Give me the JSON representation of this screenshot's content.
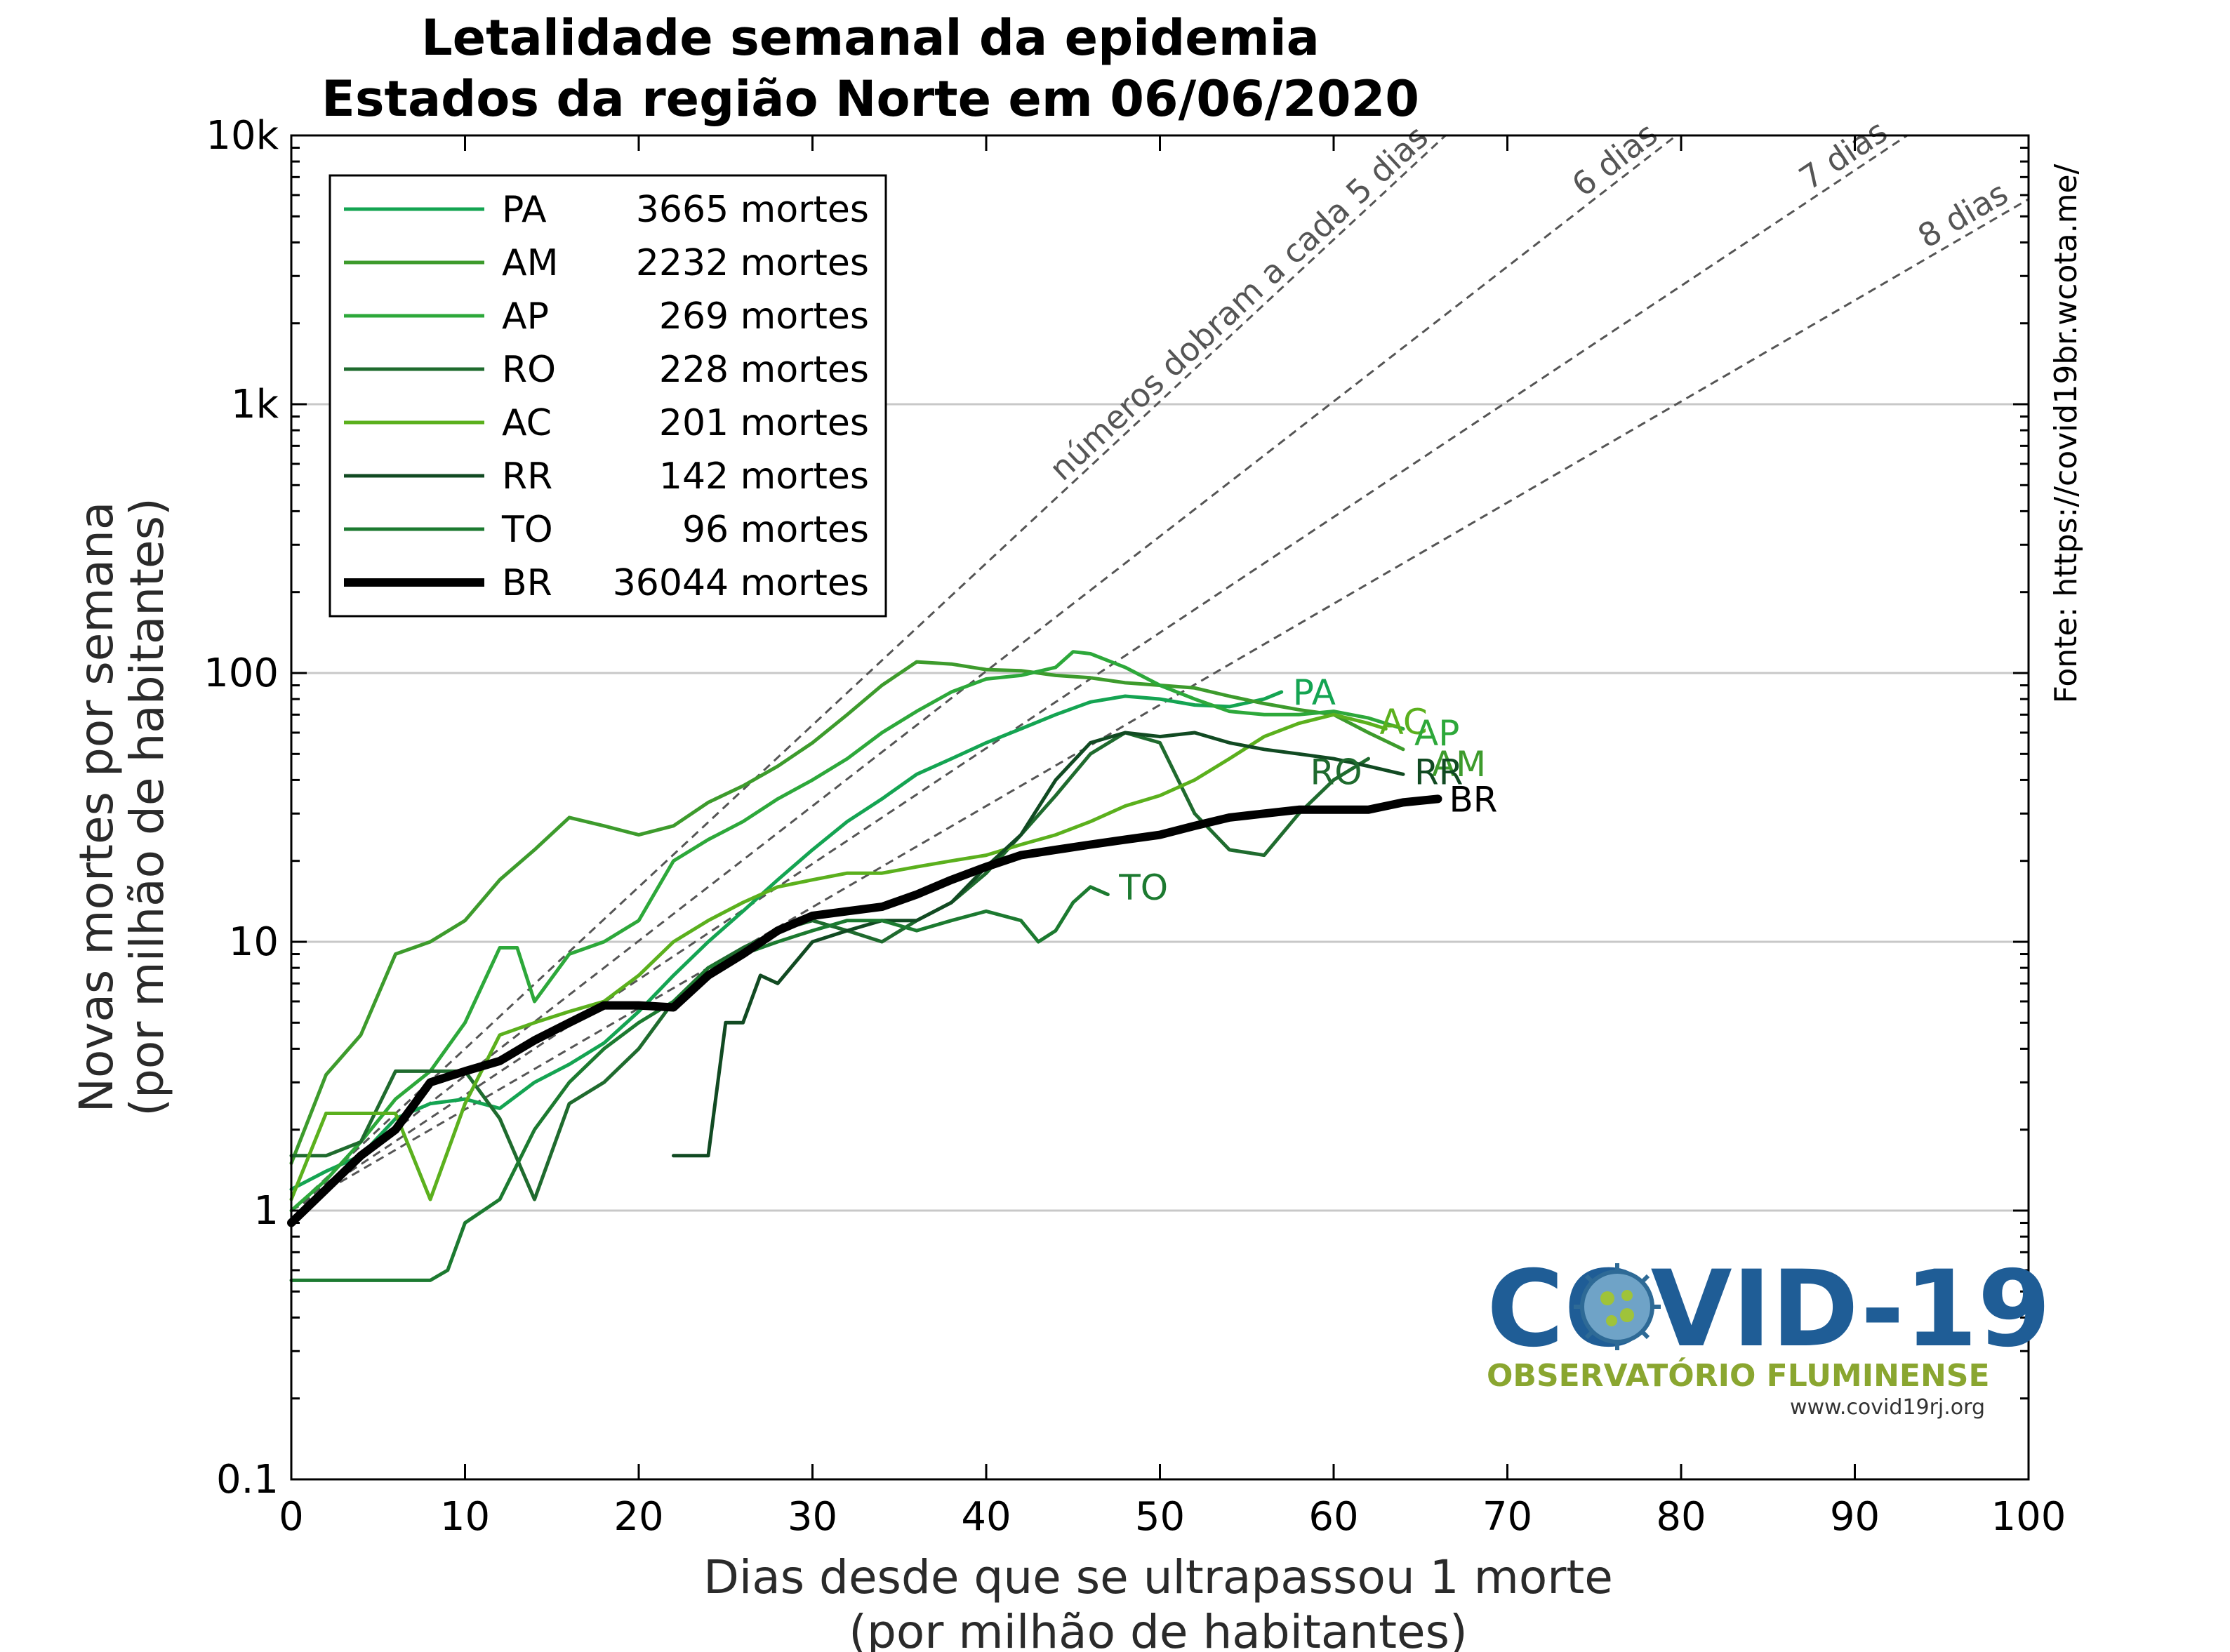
{
  "chart_data": {
    "type": "line",
    "title": "Letalidade semanal da epidemia",
    "subtitle": "Estados da região Norte em 06/06/2020",
    "xlabel_line1": "Dias desde que se ultrapassou 1 morte",
    "xlabel_line2": "(por milhão de habitantes)",
    "ylabel_line1": "Novas mortes por semana",
    "ylabel_line2": "(por milhão de habitantes)",
    "xlim": [
      0,
      100
    ],
    "ylim": [
      0.1,
      10000
    ],
    "yscale": "log",
    "xticks": [
      0,
      10,
      20,
      30,
      40,
      50,
      60,
      70,
      80,
      90,
      100
    ],
    "yticks": [
      {
        "value": 0.1,
        "label": "0.1"
      },
      {
        "value": 1,
        "label": "1"
      },
      {
        "value": 10,
        "label": "10"
      },
      {
        "value": 100,
        "label": "100"
      },
      {
        "value": 1000,
        "label": "1k"
      },
      {
        "value": 10000,
        "label": "10k"
      }
    ],
    "grid": "horizontal major",
    "legend_position": "top-left",
    "source_text": "Fonte: https://covid19br.wcota.me/",
    "reference_lines": [
      {
        "label": "números dobram a cada 5 dias",
        "doubling_days": 5
      },
      {
        "label": "6 dias",
        "doubling_days": 6
      },
      {
        "label": "7 dias",
        "doubling_days": 7
      },
      {
        "label": "8 dias",
        "doubling_days": 8
      }
    ],
    "series": [
      {
        "name": "PA",
        "deaths": "3665 mortes",
        "color": "#14a452",
        "width": 5,
        "points": [
          [
            0,
            1.2
          ],
          [
            2,
            1.4
          ],
          [
            4,
            1.6
          ],
          [
            6,
            2.2
          ],
          [
            8,
            2.5
          ],
          [
            10,
            2.6
          ],
          [
            12,
            2.4
          ],
          [
            14,
            3.0
          ],
          [
            16,
            3.5
          ],
          [
            18,
            4.2
          ],
          [
            20,
            5.5
          ],
          [
            22,
            7.5
          ],
          [
            24,
            10
          ],
          [
            26,
            13
          ],
          [
            28,
            17
          ],
          [
            30,
            22
          ],
          [
            32,
            28
          ],
          [
            34,
            34
          ],
          [
            36,
            42
          ],
          [
            38,
            48
          ],
          [
            40,
            55
          ],
          [
            42,
            62
          ],
          [
            44,
            70
          ],
          [
            46,
            78
          ],
          [
            48,
            82
          ],
          [
            50,
            80
          ],
          [
            52,
            76
          ],
          [
            54,
            75
          ],
          [
            56,
            80
          ],
          [
            57,
            85
          ]
        ]
      },
      {
        "name": "AM",
        "deaths": "2232 mortes",
        "color": "#3d9b2c",
        "width": 5,
        "points": [
          [
            0,
            1.5
          ],
          [
            2,
            3.2
          ],
          [
            4,
            4.5
          ],
          [
            6,
            9
          ],
          [
            8,
            10
          ],
          [
            10,
            12
          ],
          [
            12,
            17
          ],
          [
            14,
            22
          ],
          [
            16,
            29
          ],
          [
            18,
            27
          ],
          [
            20,
            25
          ],
          [
            22,
            27
          ],
          [
            24,
            33
          ],
          [
            26,
            38
          ],
          [
            28,
            45
          ],
          [
            30,
            55
          ],
          [
            32,
            70
          ],
          [
            34,
            90
          ],
          [
            36,
            110
          ],
          [
            38,
            108
          ],
          [
            40,
            103
          ],
          [
            42,
            102
          ],
          [
            44,
            98
          ],
          [
            46,
            96
          ],
          [
            48,
            92
          ],
          [
            50,
            90
          ],
          [
            52,
            88
          ],
          [
            54,
            82
          ],
          [
            56,
            77
          ],
          [
            58,
            73
          ],
          [
            60,
            70
          ],
          [
            62,
            60
          ],
          [
            64,
            52
          ]
        ]
      },
      {
        "name": "AP",
        "deaths": "269 mortes",
        "color": "#2da83a",
        "width": 5,
        "points": [
          [
            0,
            1.0
          ],
          [
            2,
            1.3
          ],
          [
            4,
            1.8
          ],
          [
            6,
            2.6
          ],
          [
            8,
            3.3
          ],
          [
            10,
            5
          ],
          [
            12,
            9.5
          ],
          [
            13,
            9.5
          ],
          [
            14,
            6
          ],
          [
            16,
            9
          ],
          [
            18,
            10
          ],
          [
            20,
            12
          ],
          [
            22,
            20
          ],
          [
            24,
            24
          ],
          [
            26,
            28
          ],
          [
            28,
            34
          ],
          [
            30,
            40
          ],
          [
            32,
            48
          ],
          [
            34,
            60
          ],
          [
            36,
            72
          ],
          [
            38,
            85
          ],
          [
            40,
            95
          ],
          [
            42,
            98
          ],
          [
            44,
            105
          ],
          [
            45,
            120
          ],
          [
            46,
            118
          ],
          [
            48,
            105
          ],
          [
            50,
            90
          ],
          [
            52,
            80
          ],
          [
            54,
            72
          ],
          [
            56,
            70
          ],
          [
            58,
            70
          ],
          [
            60,
            72
          ],
          [
            62,
            68
          ],
          [
            64,
            62
          ]
        ]
      },
      {
        "name": "RO",
        "deaths": "228 mortes",
        "color": "#1f6b2e",
        "width": 5,
        "points": [
          [
            0,
            1.6
          ],
          [
            2,
            1.6
          ],
          [
            4,
            1.8
          ],
          [
            6,
            3.3
          ],
          [
            8,
            3.3
          ],
          [
            10,
            3.3
          ],
          [
            12,
            2.2
          ],
          [
            14,
            1.1
          ],
          [
            16,
            2.5
          ],
          [
            18,
            3.0
          ],
          [
            20,
            4.0
          ],
          [
            22,
            6
          ],
          [
            24,
            8
          ],
          [
            26,
            9.5
          ],
          [
            28,
            11
          ],
          [
            30,
            12
          ],
          [
            32,
            11
          ],
          [
            34,
            10
          ],
          [
            36,
            12
          ],
          [
            38,
            14
          ],
          [
            40,
            18
          ],
          [
            42,
            25
          ],
          [
            44,
            35
          ],
          [
            46,
            50
          ],
          [
            48,
            60
          ],
          [
            50,
            55
          ],
          [
            52,
            30
          ],
          [
            54,
            22
          ],
          [
            56,
            21
          ],
          [
            58,
            30
          ],
          [
            60,
            40
          ],
          [
            62,
            48
          ]
        ]
      },
      {
        "name": "AC",
        "deaths": "201 mortes",
        "color": "#5bb01d",
        "width": 5,
        "points": [
          [
            0,
            1.1
          ],
          [
            2,
            2.3
          ],
          [
            4,
            2.3
          ],
          [
            6,
            2.3
          ],
          [
            8,
            1.1
          ],
          [
            10,
            2.5
          ],
          [
            12,
            4.5
          ],
          [
            14,
            5.0
          ],
          [
            16,
            5.5
          ],
          [
            18,
            6.0
          ],
          [
            20,
            7.5
          ],
          [
            22,
            10
          ],
          [
            24,
            12
          ],
          [
            26,
            14
          ],
          [
            28,
            16
          ],
          [
            30,
            17
          ],
          [
            32,
            18
          ],
          [
            34,
            18
          ],
          [
            36,
            19
          ],
          [
            38,
            20
          ],
          [
            40,
            21
          ],
          [
            42,
            23
          ],
          [
            44,
            25
          ],
          [
            46,
            28
          ],
          [
            48,
            32
          ],
          [
            50,
            35
          ],
          [
            52,
            40
          ],
          [
            54,
            48
          ],
          [
            56,
            58
          ],
          [
            58,
            65
          ],
          [
            60,
            70
          ],
          [
            62,
            65
          ],
          [
            63,
            62
          ]
        ]
      },
      {
        "name": "RR",
        "deaths": "142 mortes",
        "color": "#114a22",
        "width": 5,
        "points": [
          [
            22,
            1.6
          ],
          [
            24,
            1.6
          ],
          [
            25,
            5
          ],
          [
            26,
            5
          ],
          [
            27,
            7.5
          ],
          [
            28,
            7
          ],
          [
            30,
            10
          ],
          [
            32,
            11
          ],
          [
            34,
            12
          ],
          [
            36,
            12
          ],
          [
            38,
            14
          ],
          [
            40,
            19
          ],
          [
            42,
            25
          ],
          [
            44,
            40
          ],
          [
            46,
            55
          ],
          [
            48,
            60
          ],
          [
            50,
            58
          ],
          [
            52,
            60
          ],
          [
            54,
            55
          ],
          [
            56,
            52
          ],
          [
            58,
            50
          ],
          [
            60,
            48
          ],
          [
            62,
            45
          ],
          [
            64,
            42
          ]
        ]
      },
      {
        "name": "TO",
        "deaths": "96 mortes",
        "color": "#1c7a30",
        "width": 5,
        "points": [
          [
            0,
            0.55
          ],
          [
            2,
            0.55
          ],
          [
            4,
            0.55
          ],
          [
            6,
            0.55
          ],
          [
            8,
            0.55
          ],
          [
            9,
            0.6
          ],
          [
            10,
            0.9
          ],
          [
            12,
            1.1
          ],
          [
            14,
            2.0
          ],
          [
            16,
            3.0
          ],
          [
            18,
            4.0
          ],
          [
            20,
            5
          ],
          [
            22,
            6
          ],
          [
            24,
            8
          ],
          [
            26,
            9
          ],
          [
            28,
            10
          ],
          [
            30,
            11
          ],
          [
            32,
            12
          ],
          [
            34,
            12
          ],
          [
            36,
            11
          ],
          [
            38,
            12
          ],
          [
            40,
            13
          ],
          [
            42,
            12
          ],
          [
            43,
            10
          ],
          [
            44,
            11
          ],
          [
            45,
            14
          ],
          [
            46,
            16
          ],
          [
            47,
            15
          ]
        ]
      },
      {
        "name": "BR",
        "deaths": "36044 mortes",
        "color": "#000000",
        "width": 12,
        "points": [
          [
            0,
            0.9
          ],
          [
            2,
            1.2
          ],
          [
            4,
            1.6
          ],
          [
            6,
            2.0
          ],
          [
            8,
            3.0
          ],
          [
            10,
            3.3
          ],
          [
            12,
            3.6
          ],
          [
            14,
            4.3
          ],
          [
            16,
            5.0
          ],
          [
            18,
            5.8
          ],
          [
            20,
            5.8
          ],
          [
            22,
            5.7
          ],
          [
            24,
            7.5
          ],
          [
            26,
            9
          ],
          [
            28,
            11
          ],
          [
            30,
            12.5
          ],
          [
            32,
            13
          ],
          [
            34,
            13.5
          ],
          [
            36,
            15
          ],
          [
            38,
            17
          ],
          [
            40,
            19
          ],
          [
            42,
            21
          ],
          [
            44,
            22
          ],
          [
            46,
            23
          ],
          [
            48,
            24
          ],
          [
            50,
            25
          ],
          [
            52,
            27
          ],
          [
            54,
            29
          ],
          [
            56,
            30
          ],
          [
            58,
            31
          ],
          [
            60,
            31
          ],
          [
            62,
            31
          ],
          [
            64,
            33
          ],
          [
            66,
            34
          ]
        ]
      }
    ],
    "end_labels": [
      {
        "name": "PA",
        "x": 57,
        "y": 85,
        "color": "#14a452"
      },
      {
        "name": "AC",
        "x": 62,
        "y": 66,
        "color": "#5bb01d"
      },
      {
        "name": "AP",
        "x": 64,
        "y": 60,
        "color": "#2da83a"
      },
      {
        "name": "RO",
        "x": 58,
        "y": 43,
        "color": "#1f6b2e"
      },
      {
        "name": "AM",
        "x": 65,
        "y": 46,
        "color": "#3d9b2c"
      },
      {
        "name": "RR",
        "x": 64,
        "y": 43,
        "color": "#114a22"
      },
      {
        "name": "BR",
        "x": 66,
        "y": 34,
        "color": "#000000"
      },
      {
        "name": "TO",
        "x": 47,
        "y": 16,
        "color": "#1c7a30"
      }
    ]
  },
  "logo": {
    "main": "COVID-19",
    "sub": "OBSERVATÓRIO FLUMINENSE",
    "url": "www.covid19rj.org"
  }
}
